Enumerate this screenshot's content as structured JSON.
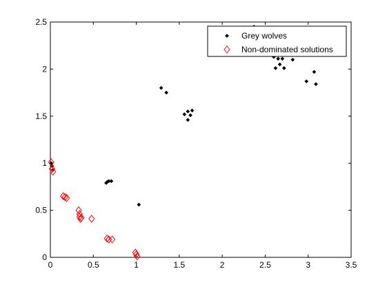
{
  "chart_data": {
    "type": "scatter",
    "title": "",
    "xlabel": "",
    "ylabel": "",
    "xlim": [
      0,
      3.5
    ],
    "ylim": [
      0,
      2.5
    ],
    "xticks": [
      0,
      0.5,
      1,
      1.5,
      2,
      2.5,
      3,
      3.5
    ],
    "yticks": [
      0,
      0.5,
      1,
      1.5,
      2,
      2.5
    ],
    "xtick_labels": [
      "0",
      "0.5",
      "1",
      "1.5",
      "2",
      "2.5",
      "3",
      "3.5"
    ],
    "ytick_labels": [
      "0",
      "0.5",
      "1",
      "1.5",
      "2",
      "2.5"
    ],
    "grid": false,
    "legend_position": "top-right",
    "series": [
      {
        "name": "Grey wolves",
        "marker": "dot",
        "color": "#000000",
        "points": [
          [
            0.01,
            1.0
          ],
          [
            0.02,
            0.97
          ],
          [
            0.03,
            0.93
          ],
          [
            0.65,
            0.79
          ],
          [
            0.66,
            0.8
          ],
          [
            0.68,
            0.81
          ],
          [
            0.71,
            0.81
          ],
          [
            1.03,
            0.56
          ],
          [
            1.29,
            1.8
          ],
          [
            1.35,
            1.75
          ],
          [
            1.56,
            1.52
          ],
          [
            1.6,
            1.55
          ],
          [
            1.6,
            1.46
          ],
          [
            1.63,
            1.51
          ],
          [
            1.65,
            1.56
          ],
          [
            2.37,
            2.45
          ],
          [
            2.6,
            2.13
          ],
          [
            2.62,
            2.01
          ],
          [
            2.65,
            2.11
          ],
          [
            2.67,
            2.05
          ],
          [
            2.7,
            2.11
          ],
          [
            2.72,
            2.01
          ],
          [
            2.82,
            2.1
          ],
          [
            2.98,
            1.87
          ],
          [
            3.07,
            1.97
          ],
          [
            3.09,
            1.84
          ]
        ]
      },
      {
        "name": "Non-dominated solutions",
        "marker": "diamond",
        "color": "#ff0000",
        "points": [
          [
            0.01,
            1.01
          ],
          [
            0.02,
            0.94
          ],
          [
            0.03,
            0.91
          ],
          [
            0.15,
            0.65
          ],
          [
            0.17,
            0.64
          ],
          [
            0.19,
            0.63
          ],
          [
            0.33,
            0.5
          ],
          [
            0.34,
            0.46
          ],
          [
            0.34,
            0.43
          ],
          [
            0.35,
            0.41
          ],
          [
            0.36,
            0.42
          ],
          [
            0.48,
            0.41
          ],
          [
            0.66,
            0.2
          ],
          [
            0.68,
            0.19
          ],
          [
            0.72,
            0.19
          ],
          [
            0.99,
            0.05
          ],
          [
            1.0,
            0.03
          ],
          [
            1.01,
            0.01
          ]
        ]
      }
    ]
  }
}
